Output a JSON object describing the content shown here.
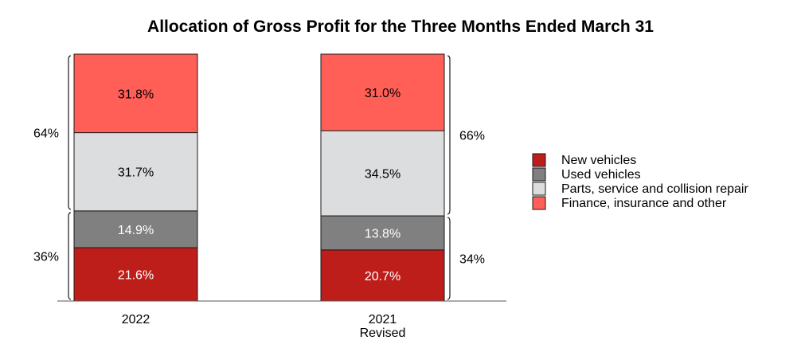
{
  "chart_data": {
    "type": "bar",
    "stacked": true,
    "title": "Allocation of Gross Profit for the Three Months Ended March 31",
    "categories": [
      {
        "line1": "2022",
        "line2": ""
      },
      {
        "line1": "2021",
        "line2": "Revised"
      }
    ],
    "ylim": [
      0,
      100
    ],
    "xlabel": "",
    "ylabel": "",
    "series": [
      {
        "name": "New vehicles",
        "color": "#BE1E1A",
        "text_color": "#ffffff",
        "values": [
          21.6,
          20.7
        ],
        "labels": [
          "21.6%",
          "20.7%"
        ]
      },
      {
        "name": "Used vehicles",
        "color": "#808080",
        "text_color": "#ffffff",
        "values": [
          14.9,
          13.8
        ],
        "labels": [
          "14.9%",
          "13.8%"
        ]
      },
      {
        "name": "Parts, service and collision repair",
        "color": "#DCDDDF",
        "text_color": "#000000",
        "values": [
          31.7,
          34.5
        ],
        "labels": [
          "31.7%",
          "34.5%"
        ]
      },
      {
        "name": "Finance, insurance and other",
        "color": "#FF5F57",
        "text_color": "#000000",
        "values": [
          31.8,
          31.0
        ],
        "labels": [
          "31.8%",
          "31.0%"
        ]
      }
    ],
    "group_totals": [
      {
        "category_index": 0,
        "side": "left",
        "groups": [
          {
            "label": "36%",
            "from": 0,
            "to": 36.5
          },
          {
            "label": "64%",
            "from": 36.5,
            "to": 100
          }
        ]
      },
      {
        "category_index": 1,
        "side": "right",
        "groups": [
          {
            "label": "34%",
            "from": 0,
            "to": 34.5
          },
          {
            "label": "66%",
            "from": 34.5,
            "to": 100
          }
        ]
      }
    ],
    "legend_position": "right",
    "legend_order": [
      0,
      1,
      2,
      3
    ]
  }
}
